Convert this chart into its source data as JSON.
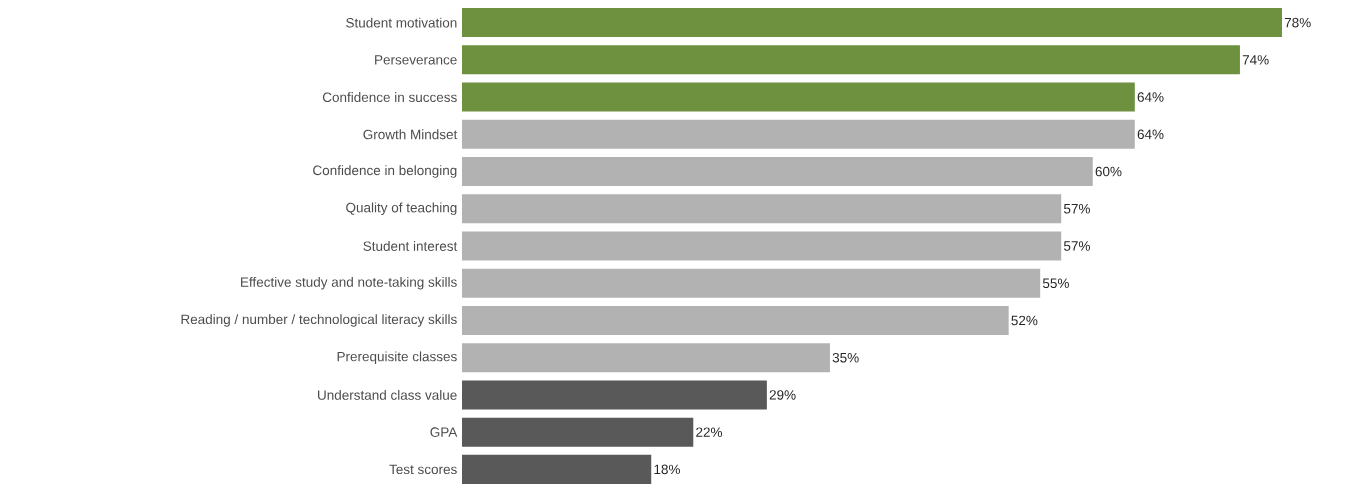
{
  "chart_data": {
    "type": "bar",
    "orientation": "horizontal",
    "categories": [
      "Student motivation",
      "Perseverance",
      "Confidence in success",
      "Growth Mindset",
      "Confidence in belonging",
      "Quality of teaching",
      "Student interest",
      "Effective study and note-taking skills",
      "Reading / number / technological literacy skills",
      "Prerequisite classes",
      "Understand class value",
      "GPA",
      "Test scores"
    ],
    "values": [
      78,
      74,
      64,
      64,
      60,
      57,
      57,
      55,
      52,
      35,
      29,
      22,
      18
    ],
    "value_labels": [
      "78%",
      "74%",
      "64%",
      "64%",
      "60%",
      "57%",
      "57%",
      "55%",
      "52%",
      "35%",
      "29%",
      "22%",
      "18%"
    ],
    "colors": [
      "#6e9140",
      "#6e9140",
      "#6e9140",
      "#b2b2b2",
      "#b2b2b2",
      "#b2b2b2",
      "#b2b2b2",
      "#b2b2b2",
      "#b2b2b2",
      "#b2b2b2",
      "#595959",
      "#595959",
      "#595959"
    ]
  }
}
